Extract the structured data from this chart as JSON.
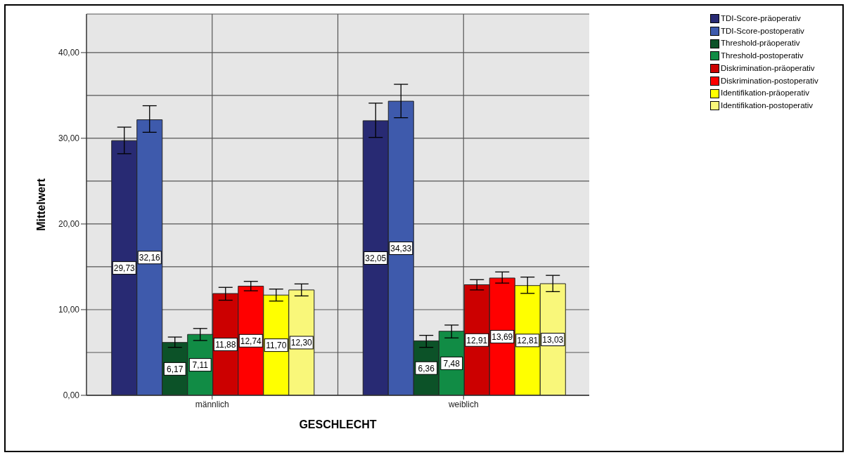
{
  "chart_data": {
    "type": "bar",
    "xlabel": "GESCHLECHT",
    "ylabel": "Mittelwert",
    "categories": [
      "männlich",
      "weiblich"
    ],
    "series": [
      {
        "name": "TDI-Score-präoperativ",
        "color": "#282a73",
        "values": [
          29.73,
          32.05
        ],
        "value_labels": [
          "29,73",
          "32,05"
        ],
        "errors": [
          [
            28.2,
            31.3
          ],
          [
            30.1,
            34.1
          ]
        ]
      },
      {
        "name": "TDI-Score-postoperativ",
        "color": "#3e5aac",
        "values": [
          32.16,
          34.33
        ],
        "value_labels": [
          "32,16",
          "34,33"
        ],
        "errors": [
          [
            30.7,
            33.8
          ],
          [
            32.4,
            36.3
          ]
        ]
      },
      {
        "name": "Threshold-präoperativ",
        "color": "#0c5228",
        "values": [
          6.17,
          6.36
        ],
        "value_labels": [
          "6,17",
          "6,36"
        ],
        "errors": [
          [
            5.6,
            6.8
          ],
          [
            5.6,
            7.0
          ]
        ]
      },
      {
        "name": "Threshold-postoperativ",
        "color": "#118c45",
        "values": [
          7.11,
          7.48
        ],
        "value_labels": [
          "7,11",
          "7,48"
        ],
        "errors": [
          [
            6.4,
            7.8
          ],
          [
            6.7,
            8.2
          ]
        ]
      },
      {
        "name": "Diskrimination-präoperativ",
        "color": "#cc0000",
        "values": [
          11.88,
          12.91
        ],
        "value_labels": [
          "11,88",
          "12,91"
        ],
        "errors": [
          [
            11.1,
            12.6
          ],
          [
            12.3,
            13.5
          ]
        ]
      },
      {
        "name": "Diskrimination-postoperativ",
        "color": "#ff0000",
        "values": [
          12.74,
          13.69
        ],
        "value_labels": [
          "12,74",
          "13,69"
        ],
        "errors": [
          [
            12.2,
            13.3
          ],
          [
            13.1,
            14.4
          ]
        ]
      },
      {
        "name": "Identifikation-präoperativ",
        "color": "#ffff00",
        "values": [
          11.7,
          12.81
        ],
        "value_labels": [
          "11,70",
          "12,81"
        ],
        "errors": [
          [
            11.0,
            12.4
          ],
          [
            11.9,
            13.8
          ]
        ]
      },
      {
        "name": "Identifikation-postoperativ",
        "color": "#f9f77a",
        "values": [
          12.3,
          13.03
        ],
        "value_labels": [
          "12,30",
          "13,03"
        ],
        "errors": [
          [
            11.6,
            13.0
          ],
          [
            12.1,
            14.0
          ]
        ]
      }
    ],
    "ylim": [
      0,
      44.5
    ],
    "yticks": [
      {
        "value": 0,
        "label": "0,00"
      },
      {
        "value": 5,
        "label": null
      },
      {
        "value": 10,
        "label": "10,00"
      },
      {
        "value": 15,
        "label": null
      },
      {
        "value": 20,
        "label": "20,00"
      },
      {
        "value": 25,
        "label": null
      },
      {
        "value": 30,
        "label": "30,00"
      },
      {
        "value": 35,
        "label": null
      },
      {
        "value": 40,
        "label": "40,00"
      }
    ],
    "grid": true,
    "legend": "top right"
  }
}
